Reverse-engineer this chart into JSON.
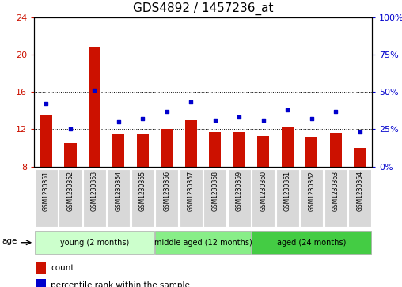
{
  "title": "GDS4892 / 1457236_at",
  "samples": [
    "GSM1230351",
    "GSM1230352",
    "GSM1230353",
    "GSM1230354",
    "GSM1230355",
    "GSM1230356",
    "GSM1230357",
    "GSM1230358",
    "GSM1230359",
    "GSM1230360",
    "GSM1230361",
    "GSM1230362",
    "GSM1230363",
    "GSM1230364"
  ],
  "counts": [
    13.5,
    10.5,
    20.8,
    11.5,
    11.4,
    12.0,
    13.0,
    11.7,
    11.7,
    11.3,
    12.3,
    11.2,
    11.6,
    10.0
  ],
  "percentiles": [
    42,
    25,
    51,
    30,
    32,
    37,
    43,
    31,
    33,
    31,
    38,
    32,
    37,
    23
  ],
  "ylim_left": [
    8,
    24
  ],
  "ylim_right": [
    0,
    100
  ],
  "yticks_left": [
    8,
    12,
    16,
    20,
    24
  ],
  "yticks_right": [
    0,
    25,
    50,
    75,
    100
  ],
  "bar_color": "#cc1100",
  "dot_color": "#0000cc",
  "groups": [
    {
      "label": "young (2 months)",
      "start": 0,
      "end": 5,
      "color": "#ccffcc"
    },
    {
      "label": "middle aged (12 months)",
      "start": 5,
      "end": 9,
      "color": "#88ee88"
    },
    {
      "label": "aged (24 months)",
      "start": 9,
      "end": 14,
      "color": "#44cc44"
    }
  ],
  "legend_count": "count",
  "legend_percentile": "percentile rank within the sample",
  "title_fontsize": 11,
  "tick_fontsize": 8,
  "group_fontsize": 7,
  "xtick_fontsize": 5.5
}
